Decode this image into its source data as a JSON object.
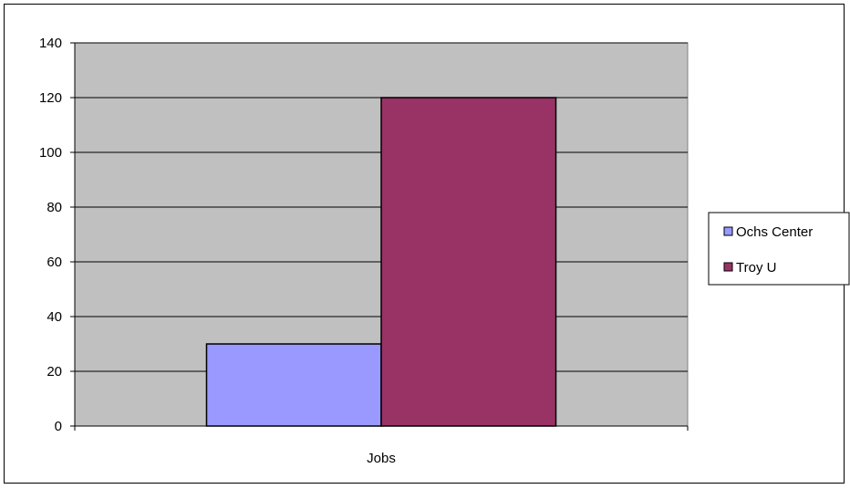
{
  "chart_data": {
    "type": "bar",
    "categories": [
      "Jobs"
    ],
    "series": [
      {
        "name": "Ochs Center",
        "values": [
          30
        ]
      },
      {
        "name": "Troy U",
        "values": [
          120
        ]
      }
    ],
    "yticks": [
      "0",
      "20",
      "40",
      "60",
      "80",
      "100",
      "120",
      "140"
    ],
    "ylim": [
      0,
      140
    ],
    "grid": true,
    "legend_position": "right",
    "colors": {
      "plot_background": "#c0c0c0",
      "series": [
        "#9999ff",
        "#993366"
      ]
    }
  }
}
